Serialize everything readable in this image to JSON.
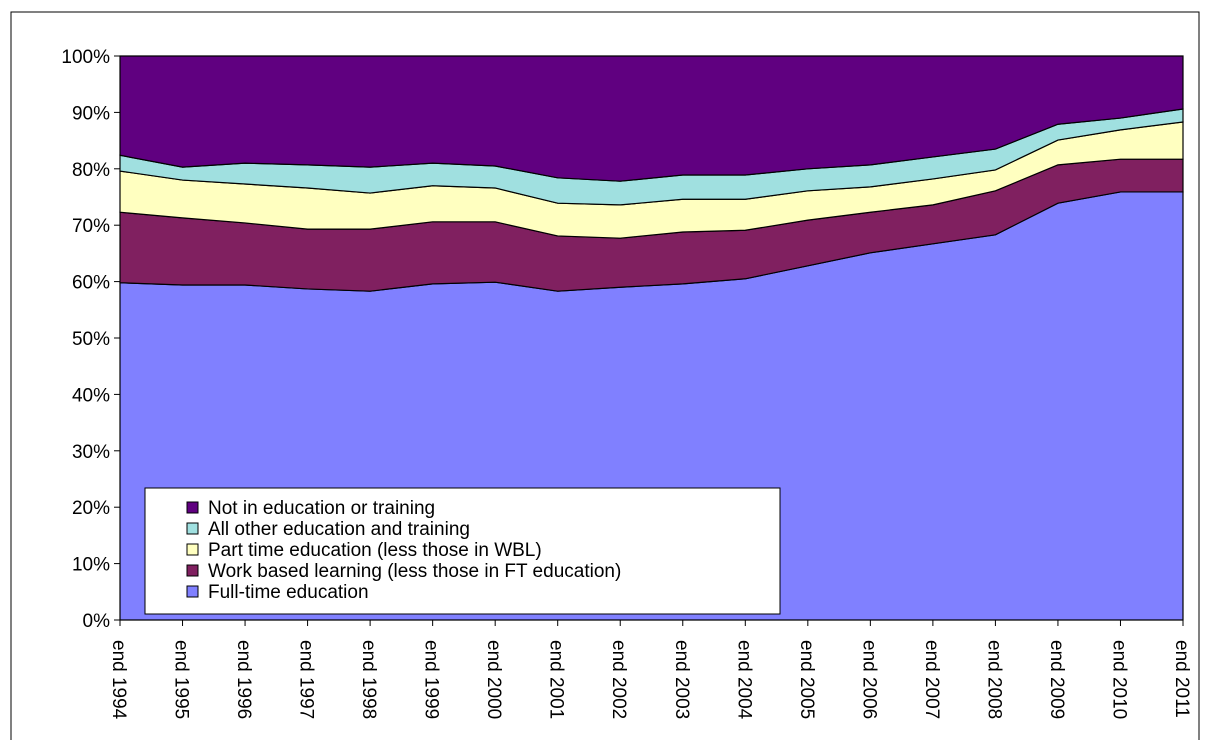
{
  "chart_data": {
    "type": "stacked_area",
    "categories": [
      "end 1994",
      "end 1995",
      "end 1996",
      "end 1997",
      "end 1998",
      "end 1999",
      "end 2000",
      "end 2001",
      "end 2002",
      "end 2003",
      "end 2004",
      "end 2005",
      "end 2006",
      "end 2007",
      "end 2008",
      "end 2009",
      "end 2010",
      "end 2011"
    ],
    "series": [
      {
        "name": "Full-time education",
        "color": "#8080ff",
        "values": [
          59.8,
          59.4,
          59.4,
          58.7,
          58.3,
          59.6,
          59.9,
          58.3,
          59.0,
          59.6,
          60.5,
          62.8,
          65.1,
          66.7,
          68.3,
          73.9,
          75.9,
          75.9
        ]
      },
      {
        "name": "Work based learning (less those in FT education)",
        "color": "#802060",
        "values": [
          12.5,
          11.9,
          11.0,
          10.6,
          11.0,
          11.0,
          10.7,
          9.8,
          8.7,
          9.2,
          8.6,
          8.1,
          7.2,
          6.9,
          7.8,
          6.8,
          5.8,
          5.8
        ]
      },
      {
        "name": "Part time education (less those in WBL)",
        "color": "#ffffc0",
        "values": [
          7.3,
          6.7,
          6.9,
          7.3,
          6.4,
          6.4,
          6.0,
          5.8,
          5.9,
          5.8,
          5.5,
          5.2,
          4.5,
          4.6,
          3.7,
          4.4,
          5.2,
          6.6
        ]
      },
      {
        "name": "All other education and training",
        "color": "#a0e0e0",
        "values": [
          2.8,
          2.3,
          3.7,
          4.1,
          4.6,
          4.0,
          3.9,
          4.5,
          4.2,
          4.3,
          4.3,
          3.9,
          3.9,
          3.9,
          3.7,
          2.8,
          2.1,
          2.3
        ]
      },
      {
        "name": "Not in education or training",
        "color": "#600080",
        "values": [
          17.6,
          19.7,
          19.0,
          19.3,
          19.7,
          19.0,
          19.5,
          21.6,
          22.2,
          21.1,
          21.1,
          20.0,
          19.3,
          17.9,
          16.5,
          12.1,
          11.0,
          9.4
        ]
      }
    ],
    "ylim": [
      0,
      100
    ],
    "yticks": [
      {
        "value": 0,
        "label": "0%"
      },
      {
        "value": 10,
        "label": "10%"
      },
      {
        "value": 20,
        "label": "20%"
      },
      {
        "value": 30,
        "label": "30%"
      },
      {
        "value": 40,
        "label": "40%"
      },
      {
        "value": 50,
        "label": "50%"
      },
      {
        "value": 60,
        "label": "60%"
      },
      {
        "value": 70,
        "label": "70%"
      },
      {
        "value": 80,
        "label": "80%"
      },
      {
        "value": 90,
        "label": "90%"
      },
      {
        "value": 100,
        "label": "100%"
      }
    ],
    "legend": "lower-left"
  }
}
